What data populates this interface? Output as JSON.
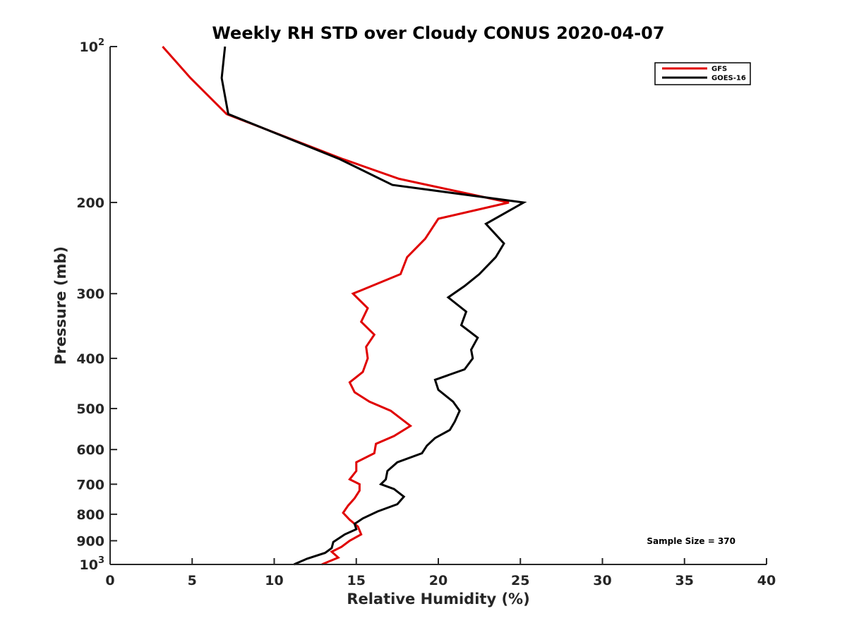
{
  "chart_data": {
    "type": "line",
    "title": "Weekly RH STD over Cloudy CONUS 2020-04-07",
    "xlabel": "Relative Humidity (%)",
    "ylabel": "Pressure (mb)",
    "xlim": [
      0,
      40
    ],
    "ylim": [
      100,
      1000
    ],
    "y_scale": "log",
    "y_axis_direction": "reversed",
    "x_ticks": [
      "0",
      "5",
      "10",
      "15",
      "20",
      "25",
      "30",
      "35",
      "40"
    ],
    "y_ticks": [
      {
        "value": 100,
        "base": "10",
        "exp": "2"
      },
      {
        "value": 200,
        "label": "200"
      },
      {
        "value": 300,
        "label": "300"
      },
      {
        "value": 400,
        "label": "400"
      },
      {
        "value": 500,
        "label": "500"
      },
      {
        "value": 600,
        "label": "600"
      },
      {
        "value": 700,
        "label": "700"
      },
      {
        "value": 800,
        "label": "800"
      },
      {
        "value": 900,
        "label": "900"
      },
      {
        "value": 1000,
        "base": "10",
        "exp": "3"
      }
    ],
    "legend_position": "top-right",
    "grid": false,
    "annotation": "Sample Size = 370",
    "series": [
      {
        "name": "GFS",
        "color": "#e00000",
        "points": [
          [
            3.2,
            100
          ],
          [
            4.9,
            115
          ],
          [
            7.1,
            135
          ],
          [
            14.2,
            165
          ],
          [
            17.6,
            180
          ],
          [
            24.3,
            200
          ],
          [
            20.0,
            215
          ],
          [
            19.2,
            235
          ],
          [
            18.1,
            255
          ],
          [
            17.7,
            275
          ],
          [
            14.8,
            300
          ],
          [
            15.7,
            320
          ],
          [
            15.3,
            340
          ],
          [
            16.1,
            360
          ],
          [
            15.6,
            380
          ],
          [
            15.7,
            400
          ],
          [
            15.4,
            425
          ],
          [
            14.6,
            445
          ],
          [
            14.9,
            465
          ],
          [
            15.8,
            485
          ],
          [
            17.1,
            505
          ],
          [
            18.3,
            540
          ],
          [
            17.3,
            565
          ],
          [
            16.2,
            585
          ],
          [
            16.1,
            610
          ],
          [
            15.0,
            635
          ],
          [
            15.0,
            660
          ],
          [
            14.6,
            685
          ],
          [
            15.2,
            700
          ],
          [
            15.2,
            720
          ],
          [
            14.9,
            745
          ],
          [
            14.5,
            770
          ],
          [
            14.2,
            795
          ],
          [
            14.6,
            820
          ],
          [
            15.1,
            845
          ],
          [
            15.3,
            875
          ],
          [
            14.6,
            900
          ],
          [
            14.1,
            925
          ],
          [
            13.5,
            945
          ],
          [
            13.9,
            970
          ],
          [
            12.9,
            1000
          ]
        ]
      },
      {
        "name": "GOES-16",
        "color": "#000000",
        "points": [
          [
            7.0,
            100
          ],
          [
            6.8,
            115
          ],
          [
            7.2,
            135
          ],
          [
            14.0,
            165
          ],
          [
            17.2,
            185
          ],
          [
            25.2,
            200
          ],
          [
            22.9,
            220
          ],
          [
            24.0,
            240
          ],
          [
            23.5,
            255
          ],
          [
            22.5,
            275
          ],
          [
            21.6,
            290
          ],
          [
            20.6,
            305
          ],
          [
            21.7,
            325
          ],
          [
            21.4,
            345
          ],
          [
            22.4,
            365
          ],
          [
            22.0,
            385
          ],
          [
            22.1,
            400
          ],
          [
            21.6,
            420
          ],
          [
            19.8,
            440
          ],
          [
            20.0,
            460
          ],
          [
            20.9,
            485
          ],
          [
            21.3,
            505
          ],
          [
            21.0,
            530
          ],
          [
            20.7,
            550
          ],
          [
            19.8,
            570
          ],
          [
            19.3,
            590
          ],
          [
            19.0,
            610
          ],
          [
            17.5,
            635
          ],
          [
            16.9,
            660
          ],
          [
            16.8,
            685
          ],
          [
            16.5,
            700
          ],
          [
            17.3,
            715
          ],
          [
            17.9,
            740
          ],
          [
            17.5,
            765
          ],
          [
            16.3,
            790
          ],
          [
            15.4,
            815
          ],
          [
            14.9,
            835
          ],
          [
            15.0,
            855
          ],
          [
            14.3,
            875
          ],
          [
            13.6,
            905
          ],
          [
            13.5,
            930
          ],
          [
            13.1,
            950
          ],
          [
            12.0,
            975
          ],
          [
            11.2,
            1000
          ]
        ]
      }
    ]
  }
}
